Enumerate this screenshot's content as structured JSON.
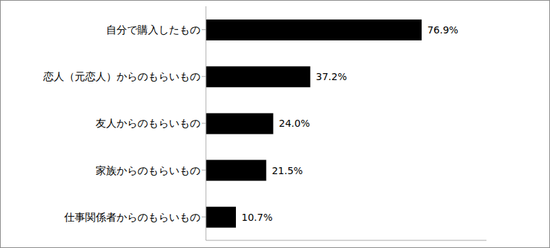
{
  "chart_data": {
    "type": "bar",
    "orientation": "horizontal",
    "categories": [
      "自分で購入したもの",
      "恋人（元恋人）からのもらいもの",
      "友人からのもらいもの",
      "家族からのもらいもの",
      "仕事関係者からのもらいもの"
    ],
    "values": [
      76.9,
      37.2,
      24.0,
      21.5,
      10.7
    ],
    "value_labels": [
      "76.9%",
      "37.2%",
      "24.0%",
      "21.5%",
      "10.7%"
    ],
    "color": "#000000",
    "xlim": [
      0,
      100
    ],
    "data_labels": true,
    "grid": false,
    "tick_labels": "y"
  }
}
